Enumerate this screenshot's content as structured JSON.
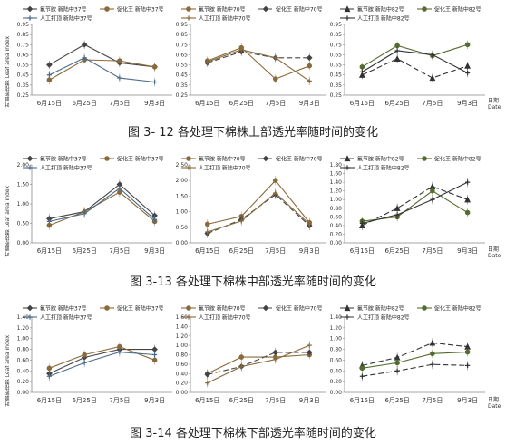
{
  "captions": [
    "图 3- 12  各处理下棉株上部透光率随时间的变化",
    "图 3-13  各处理下棉株中部透光率随时间的变化",
    "图 3-14  各处理下棉株下部透光率随时间的变化"
  ],
  "y_label": "叶面积指数 Leaf area index",
  "x_unit": "日期",
  "x_unit_en": "Date",
  "chart_data": [
    {
      "type": "line",
      "row": 0,
      "col": 0,
      "categories": [
        "6月15日",
        "6月25日",
        "7月5日",
        "9月3日"
      ],
      "ylim": [
        0.25,
        0.95
      ],
      "yticks": [
        "0.25",
        "0.35",
        "0.45",
        "0.55",
        "0.65",
        "0.75",
        "0.85",
        "0.95"
      ],
      "series": [
        {
          "name": "氟节胺 新陆中37号",
          "values": [
            0.55,
            0.75,
            0.57,
            0.53
          ],
          "color": "#444444",
          "dash": "none",
          "marker": "diamond"
        },
        {
          "name": "促化王 新陆中37号",
          "values": [
            0.4,
            0.6,
            0.59,
            0.53
          ],
          "color": "#8a6a3a",
          "dash": "none",
          "marker": "circle"
        },
        {
          "name": "人工打顶 新陆中37号",
          "values": [
            0.45,
            0.62,
            0.42,
            0.38
          ],
          "color": "#4a6a8a",
          "dash": "none",
          "marker": "plus"
        }
      ]
    },
    {
      "type": "line",
      "row": 0,
      "col": 1,
      "categories": [
        "6月15日",
        "6月25日",
        "7月5日",
        "9月3日"
      ],
      "ylim": [
        0.25,
        0.95
      ],
      "yticks": [
        "0.25",
        "0.35",
        "0.45",
        "0.55",
        "0.65",
        "0.75",
        "0.85",
        "0.95"
      ],
      "series": [
        {
          "name": "氟节胺 新陆中70号",
          "values": [
            0.59,
            0.72,
            0.41,
            0.54
          ],
          "color": "#8a6a3a",
          "dash": "none",
          "marker": "circle"
        },
        {
          "name": "促化王 新陆中70号",
          "values": [
            0.57,
            0.68,
            0.62,
            0.62
          ],
          "color": "#444444",
          "dash": "6,3",
          "marker": "diamond"
        },
        {
          "name": "人工打顶 新陆中70号",
          "values": [
            0.58,
            0.7,
            0.62,
            0.39
          ],
          "color": "#8a6a3a",
          "dash": "none",
          "marker": "plus"
        }
      ]
    },
    {
      "type": "line",
      "row": 0,
      "col": 2,
      "categories": [
        "6月15日",
        "6月25日",
        "7月5日",
        "9月3日"
      ],
      "ylim": [
        0.25,
        0.95
      ],
      "yticks": [
        "0.25",
        "0.35",
        "0.45",
        "0.55",
        "0.65",
        "0.75",
        "0.85",
        "0.95"
      ],
      "series": [
        {
          "name": "氟节胺 新陆中82号",
          "values": [
            0.45,
            0.61,
            0.42,
            0.54
          ],
          "color": "#333333",
          "dash": "6,3",
          "marker": "triangle"
        },
        {
          "name": "促化王 新陆中82号",
          "values": [
            0.53,
            0.74,
            0.64,
            0.75
          ],
          "color": "#556b2f",
          "dash": "none",
          "marker": "circle"
        },
        {
          "name": "人工打顶 新陆中82号",
          "values": [
            0.48,
            0.69,
            0.65,
            0.47
          ],
          "color": "#333333",
          "dash": "none",
          "marker": "plus"
        }
      ]
    },
    {
      "type": "line",
      "row": 1,
      "col": 0,
      "categories": [
        "6月15日",
        "6月25日",
        "7月5日",
        "9月3日"
      ],
      "ylim": [
        0.0,
        2.0
      ],
      "yticks": [
        "0.00",
        "0.50",
        "1.00",
        "1.50",
        "2.00"
      ],
      "series": [
        {
          "name": "氟节胺 新陆中37号",
          "values": [
            0.62,
            0.8,
            1.5,
            0.7
          ],
          "color": "#444444",
          "dash": "none",
          "marker": "diamond"
        },
        {
          "name": "促化王 新陆中37号",
          "values": [
            0.45,
            0.8,
            1.3,
            0.55
          ],
          "color": "#8a6a3a",
          "dash": "none",
          "marker": "circle"
        },
        {
          "name": "人工打顶 新陆中37号",
          "values": [
            0.55,
            0.75,
            1.4,
            0.6
          ],
          "color": "#4a6a8a",
          "dash": "none",
          "marker": "plus"
        }
      ]
    },
    {
      "type": "line",
      "row": 1,
      "col": 1,
      "categories": [
        "6月15日",
        "6月25日",
        "7月5日",
        "9月3日"
      ],
      "ylim": [
        0.0,
        2.5
      ],
      "yticks": [
        "0.00",
        "0.50",
        "1.00",
        "1.50",
        "2.00",
        "2.50"
      ],
      "series": [
        {
          "name": "氟节胺 新陆中70号",
          "values": [
            0.6,
            0.85,
            2.0,
            0.65
          ],
          "color": "#8a6a3a",
          "dash": "none",
          "marker": "circle"
        },
        {
          "name": "促化王 新陆中70号",
          "values": [
            0.3,
            0.75,
            1.55,
            0.55
          ],
          "color": "#444444",
          "dash": "6,3",
          "marker": "diamond"
        },
        {
          "name": "人工打顶 新陆中70号",
          "values": [
            0.35,
            0.7,
            1.6,
            0.6
          ],
          "color": "#8a6a3a",
          "dash": "none",
          "marker": "plus"
        }
      ]
    },
    {
      "type": "line",
      "row": 1,
      "col": 2,
      "categories": [
        "6月15日",
        "6月25日",
        "7月5日",
        "9月3日"
      ],
      "ylim": [
        0.0,
        1.8
      ],
      "yticks": [
        "0.00",
        "0.20",
        "0.40",
        "0.60",
        "0.80",
        "1.00",
        "1.20",
        "1.40",
        "1.60",
        "1.80"
      ],
      "series": [
        {
          "name": "氟节胺 新陆中82号",
          "values": [
            0.4,
            0.8,
            1.3,
            1.0
          ],
          "color": "#333333",
          "dash": "6,3",
          "marker": "triangle"
        },
        {
          "name": "促化王 新陆中82号",
          "values": [
            0.5,
            0.6,
            1.2,
            0.7
          ],
          "color": "#556b2f",
          "dash": "none",
          "marker": "circle"
        },
        {
          "name": "人工打顶 新陆中82号",
          "values": [
            0.45,
            0.65,
            1.0,
            1.4
          ],
          "color": "#333333",
          "dash": "none",
          "marker": "plus"
        }
      ]
    },
    {
      "type": "line",
      "row": 2,
      "col": 0,
      "categories": [
        "6月15日",
        "6月25日",
        "7月5日",
        "9月3日"
      ],
      "ylim": [
        0.0,
        1.4
      ],
      "yticks": [
        "0.00",
        "0.20",
        "0.40",
        "0.60",
        "0.80",
        "1.00",
        "1.20",
        "1.40"
      ],
      "series": [
        {
          "name": "氟节胺 新陆中37号",
          "values": [
            0.35,
            0.65,
            0.8,
            0.8
          ],
          "color": "#444444",
          "dash": "none",
          "marker": "diamond"
        },
        {
          "name": "促化王 新陆中37号",
          "values": [
            0.45,
            0.7,
            0.85,
            0.6
          ],
          "color": "#8a6a3a",
          "dash": "none",
          "marker": "circle"
        },
        {
          "name": "人工打顶 新陆中37号",
          "values": [
            0.3,
            0.55,
            0.75,
            0.7
          ],
          "color": "#4a6a8a",
          "dash": "none",
          "marker": "plus"
        }
      ]
    },
    {
      "type": "line",
      "row": 2,
      "col": 1,
      "categories": [
        "6月15日",
        "6月25日",
        "7月5日",
        "9月3日"
      ],
      "ylim": [
        0.0,
        1.6
      ],
      "yticks": [
        "0.00",
        "0.20",
        "0.40",
        "0.60",
        "0.80",
        "1.00",
        "1.20",
        "1.40",
        "1.60"
      ],
      "series": [
        {
          "name": "氟节胺 新陆中70号",
          "values": [
            0.4,
            0.75,
            0.75,
            0.8
          ],
          "color": "#8a6a3a",
          "dash": "none",
          "marker": "circle"
        },
        {
          "name": "促化王 新陆中70号",
          "values": [
            0.38,
            0.55,
            0.85,
            0.85
          ],
          "color": "#444444",
          "dash": "6,3",
          "marker": "diamond"
        },
        {
          "name": "人工打顶 新陆中70号",
          "values": [
            0.2,
            0.55,
            0.7,
            1.0
          ],
          "color": "#8a6a3a",
          "dash": "none",
          "marker": "plus"
        }
      ]
    },
    {
      "type": "line",
      "row": 2,
      "col": 2,
      "categories": [
        "6月15日",
        "6月25日",
        "7月5日",
        "9月3日"
      ],
      "ylim": [
        0.0,
        1.4
      ],
      "yticks": [
        "0.00",
        "0.20",
        "0.40",
        "0.60",
        "0.80",
        "1.00",
        "1.20",
        "1.40"
      ],
      "series": [
        {
          "name": "氟节胺 新陆中82号",
          "values": [
            0.5,
            0.65,
            0.92,
            0.85
          ],
          "color": "#333333",
          "dash": "6,3",
          "marker": "triangle"
        },
        {
          "name": "促化王 新陆中82号",
          "values": [
            0.45,
            0.55,
            0.72,
            0.75
          ],
          "color": "#556b2f",
          "dash": "none",
          "marker": "circle"
        },
        {
          "name": "人工打顶 新陆中82号",
          "values": [
            0.3,
            0.4,
            0.52,
            0.5
          ],
          "color": "#333333",
          "dash": "6,3",
          "marker": "plus"
        }
      ]
    }
  ]
}
